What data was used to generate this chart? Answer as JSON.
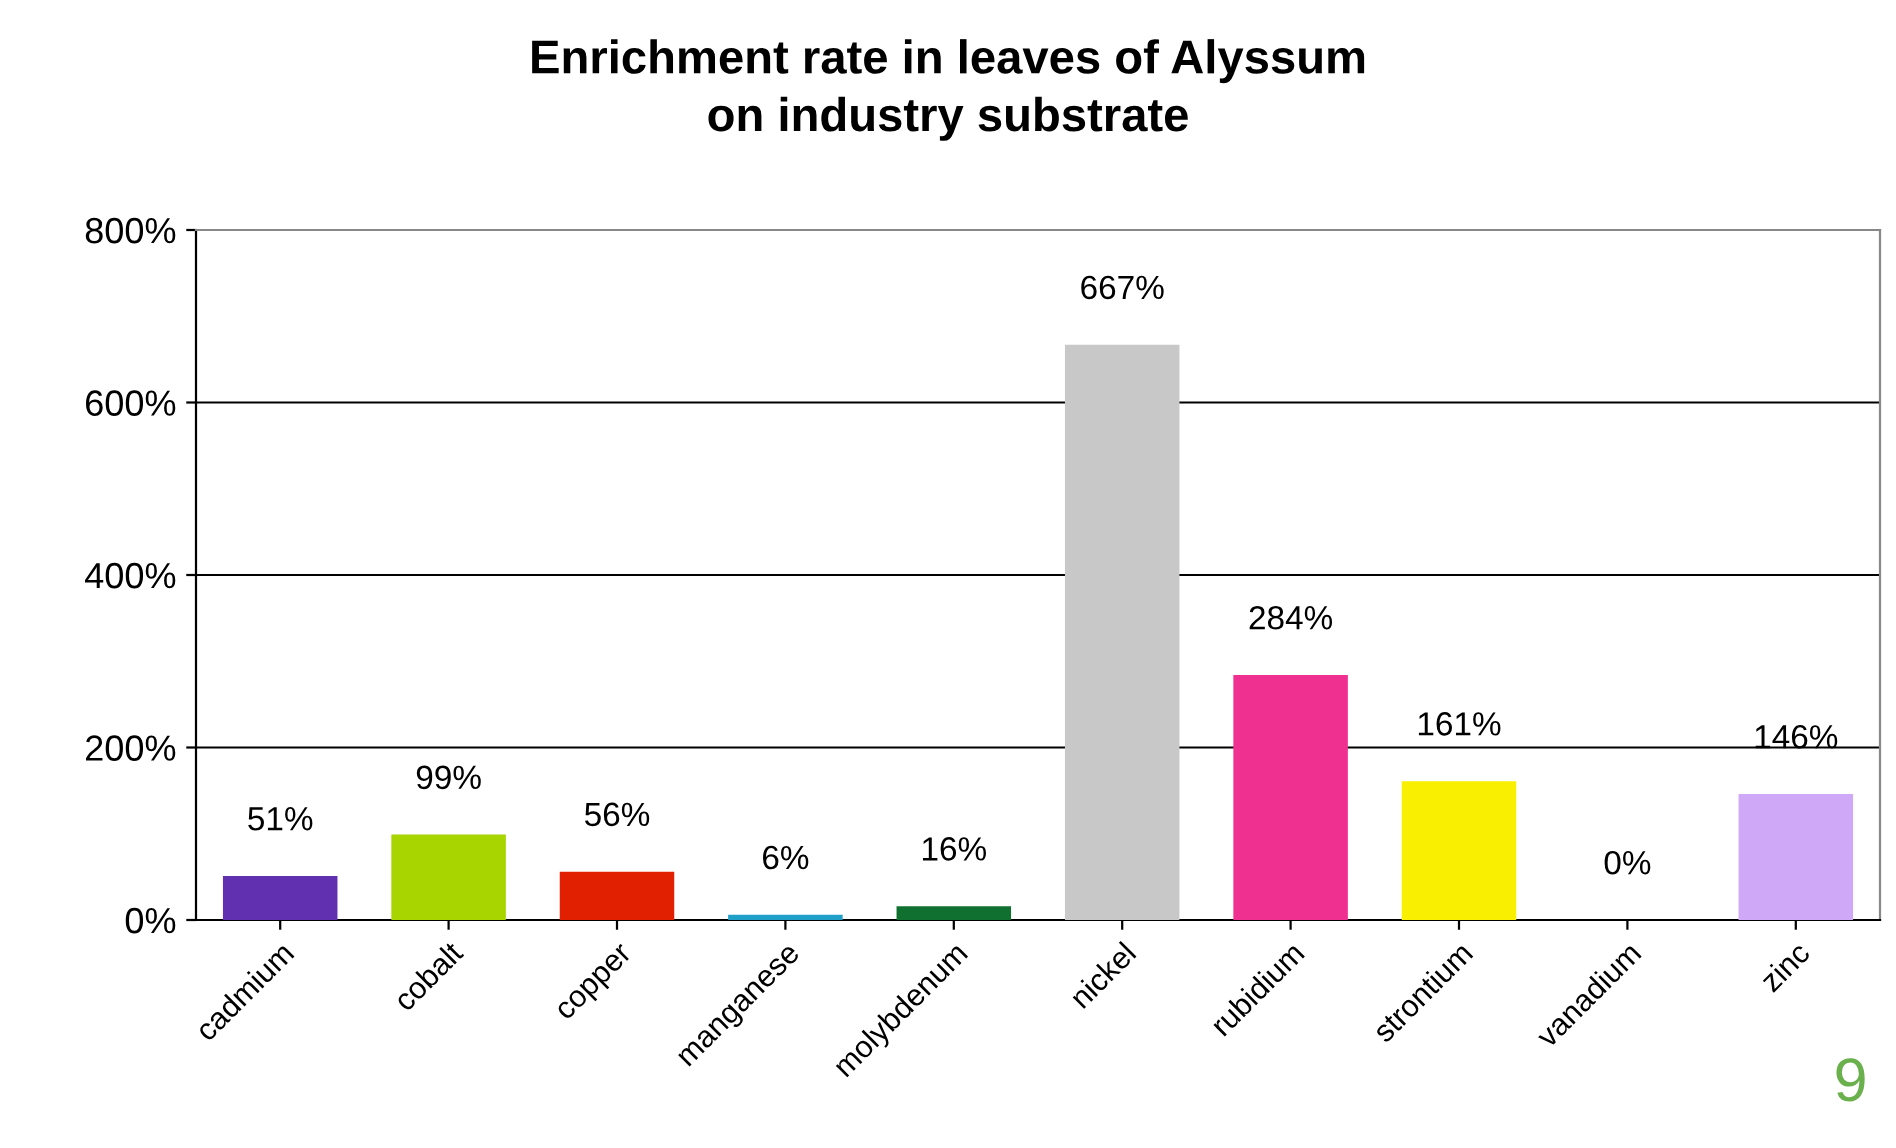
{
  "chart_data": {
    "type": "bar",
    "title": "Enrichment rate in leaves of Alyssum\non industry substrate",
    "categories": [
      "cadmium",
      "cobalt",
      "copper",
      "manganese",
      "molybdenum",
      "nickel",
      "rubidium",
      "strontium",
      "vanadium",
      "zinc"
    ],
    "values": [
      51,
      99,
      56,
      6,
      16,
      667,
      284,
      161,
      0,
      146
    ],
    "colors": [
      "#6030b0",
      "#a8d400",
      "#e02000",
      "#20a0c8",
      "#107030",
      "#c8c8c8",
      "#f03090",
      "#f8f000",
      "#808080",
      "#d0a8f8"
    ],
    "value_labels": [
      "51%",
      "99%",
      "56%",
      "6%",
      "16%",
      "667%",
      "284%",
      "161%",
      "0%",
      "146%"
    ],
    "ylim": [
      0,
      800
    ],
    "yticks": [
      {
        "value": 0,
        "label": "0%"
      },
      {
        "value": 200,
        "label": "200%"
      },
      {
        "value": 400,
        "label": "400%"
      },
      {
        "value": 600,
        "label": "600%"
      },
      {
        "value": 800,
        "label": "800%"
      }
    ],
    "grid": "y",
    "annotations": [
      "9"
    ]
  }
}
